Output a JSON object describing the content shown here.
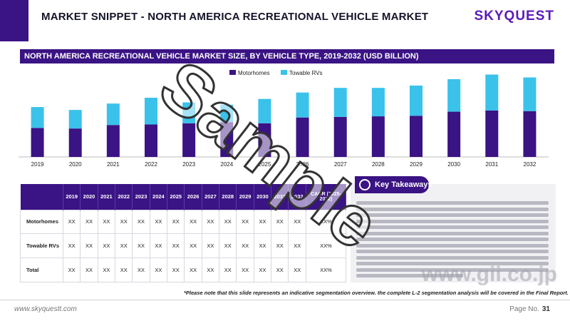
{
  "page": {
    "title": "MARKET SNIPPET - NORTH AMERICA RECREATIONAL VEHICLE MARKET",
    "logo": "SKYQUEST",
    "url": "www.skyquestt.com",
    "page_label": "Page No.",
    "page_number": "31",
    "note": "*Please note that this slide represents an indicative segmentation overview. the complete L-2 segmentation analysis will be covered in the Final Report.",
    "watermark": "Sample",
    "gii_watermark": "www.gii.co.jp"
  },
  "chart_data": {
    "type": "bar",
    "stacked": true,
    "title": "NORTH AMERICA RECREATIONAL VEHICLE MARKET SIZE, BY VEHICLE TYPE, 2019-2032 (USD BILLION)",
    "categories": [
      "2019",
      "2020",
      "2021",
      "2022",
      "2023",
      "2024",
      "2025",
      "2026",
      "2027",
      "2028",
      "2029",
      "2030",
      "2031",
      "2032"
    ],
    "series": [
      {
        "name": "Motorhomes",
        "color": "#3a1384",
        "values": [
          50,
          49,
          55,
          56,
          58,
          60,
          58,
          68,
          69,
          70,
          71,
          78,
          80,
          79
        ]
      },
      {
        "name": "Towable RVs",
        "color": "#3ac2ea",
        "values": [
          36,
          32,
          37,
          46,
          36,
          30,
          42,
          43,
          50,
          49,
          52,
          56,
          62,
          58
        ]
      }
    ],
    "legend": "top-left",
    "grid": false
  },
  "table": {
    "headers": [
      "2019",
      "2020",
      "2021",
      "2022",
      "2023",
      "2024",
      "2025",
      "2026",
      "2027",
      "2028",
      "2029",
      "2030",
      "2031",
      "2032",
      "CAGR (2025-2032)"
    ],
    "rows": [
      {
        "label": "Motorhomes",
        "cells": [
          "XX",
          "XX",
          "XX",
          "XX",
          "XX",
          "XX",
          "XX",
          "XX",
          "XX",
          "XX",
          "XX",
          "XX",
          "XX",
          "XX",
          "XX%"
        ]
      },
      {
        "label": "Towable RVs",
        "cells": [
          "XX",
          "XX",
          "XX",
          "XX",
          "XX",
          "XX",
          "XX",
          "XX",
          "XX",
          "XX",
          "XX",
          "XX",
          "XX",
          "XX",
          "XX%"
        ]
      },
      {
        "label": "Total",
        "cells": [
          "XX",
          "XX",
          "XX",
          "XX",
          "XX",
          "XX",
          "XX",
          "XX",
          "XX",
          "XX",
          "XX",
          "XX",
          "XX",
          "XX",
          "XX%"
        ]
      }
    ]
  },
  "takeaways": {
    "title": "Key Takeaways"
  }
}
